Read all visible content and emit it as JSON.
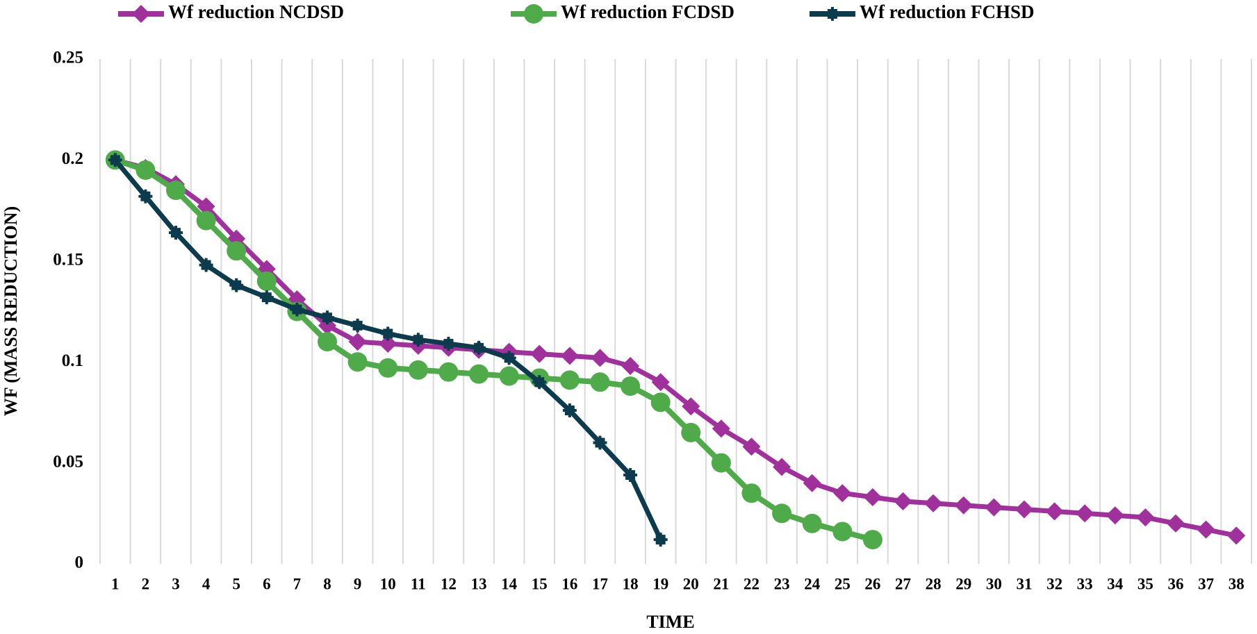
{
  "chart_data": {
    "type": "line",
    "x_label": "TIME",
    "y_label": "WF (MASS REDUCTION)",
    "categories": [
      "1",
      "2",
      "3",
      "4",
      "5",
      "6",
      "7",
      "8",
      "9",
      "10",
      "11",
      "12",
      "13",
      "14",
      "15",
      "16",
      "17",
      "18",
      "19",
      "20",
      "21",
      "22",
      "23",
      "24",
      "25",
      "26",
      "27",
      "28",
      "29",
      "30",
      "31",
      "32",
      "33",
      "34",
      "35",
      "36",
      "37",
      "38"
    ],
    "series": [
      {
        "name": "Wf reduction NCDSD",
        "color": "#a0309b",
        "marker": "star",
        "values": [
          0.2,
          0.196,
          0.188,
          0.177,
          0.161,
          0.146,
          0.131,
          0.118,
          0.11,
          0.109,
          0.108,
          0.107,
          0.106,
          0.105,
          0.104,
          0.103,
          0.102,
          0.098,
          0.09,
          0.078,
          0.067,
          0.058,
          0.048,
          0.04,
          0.035,
          0.033,
          0.031,
          0.03,
          0.029,
          0.028,
          0.027,
          0.026,
          0.025,
          0.024,
          0.023,
          0.02,
          0.017,
          0.014
        ]
      },
      {
        "name": "Wf reduction FCDSD",
        "color": "#4fab4a",
        "marker": "circle",
        "values": [
          0.2,
          0.195,
          0.185,
          0.17,
          0.155,
          0.14,
          0.125,
          0.11,
          0.1,
          0.097,
          0.096,
          0.095,
          0.094,
          0.093,
          0.092,
          0.091,
          0.09,
          0.088,
          0.08,
          0.065,
          0.05,
          0.035,
          0.025,
          0.02,
          0.016,
          0.012,
          null,
          null,
          null,
          null,
          null,
          null,
          null,
          null,
          null,
          null,
          null,
          null
        ]
      },
      {
        "name": "Wf reduction FCHSD",
        "color": "#0c3b4e",
        "marker": "square",
        "values": [
          0.2,
          0.182,
          0.164,
          0.148,
          0.138,
          0.132,
          0.126,
          0.122,
          0.118,
          0.114,
          0.111,
          0.109,
          0.107,
          0.102,
          0.09,
          0.076,
          0.06,
          0.044,
          0.012,
          null,
          null,
          null,
          null,
          null,
          null,
          null,
          null,
          null,
          null,
          null,
          null,
          null,
          null,
          null,
          null,
          null,
          null,
          null
        ]
      }
    ],
    "ylim": [
      0,
      0.25
    ],
    "yticks": [
      0,
      0.05,
      0.1,
      0.15,
      0.2,
      0.25
    ],
    "grid": true,
    "legend": "top"
  }
}
